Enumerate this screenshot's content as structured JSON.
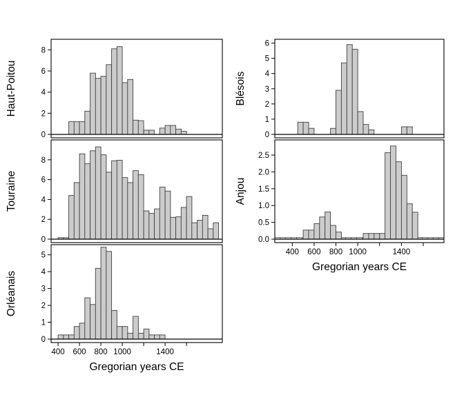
{
  "figure": {
    "xlabel": "Gregorian years CE",
    "x_ticks": [
      400,
      600,
      800,
      1000,
      1200,
      1400,
      1600
    ],
    "x_tick_labels": [
      "400",
      "600",
      "800",
      "1000",
      "",
      "1400",
      ""
    ],
    "colors": {
      "background": "#ffffff",
      "bar_fill": "#cccccc",
      "bar_stroke": "#3f3f3f",
      "axis": "#000000",
      "strip_fill": "#c8c8c8",
      "strip_stroke": "#555555"
    }
  },
  "chart_data": [
    {
      "type": "bar",
      "name": "haut-poitou",
      "ylabel": "Haut-Poitou",
      "xlabel": "Gregorian years CE",
      "column": "left",
      "row": 0,
      "bin_width": 50,
      "bin_start": 500,
      "values": [
        1.2,
        1.2,
        1.2,
        2.2,
        5.8,
        5.3,
        5.5,
        6.6,
        8.1,
        8.3,
        4.9,
        5.2,
        1.35,
        1.3,
        0.4,
        0.4,
        0,
        0.6,
        0.85,
        0.85,
        0.5,
        0.3
      ],
      "y_ticks": [
        0,
        2,
        4,
        6,
        8
      ],
      "y_tick_labels": [
        "0",
        "2",
        "4",
        "6",
        "8"
      ],
      "ylim": [
        0,
        9.0
      ],
      "x_domain": [
        335,
        1935
      ],
      "baseline_strip": null,
      "show_xaxis": false
    },
    {
      "type": "bar",
      "name": "touraine",
      "ylabel": "Touraine",
      "xlabel": "Gregorian years CE",
      "column": "left",
      "row": 1,
      "bin_width": 50,
      "bin_start": 400,
      "values": [
        0.15,
        0.15,
        4.4,
        5.7,
        8.6,
        7.6,
        8.9,
        9.3,
        8.5,
        6.75,
        7.9,
        7.95,
        6.2,
        5.7,
        6.9,
        6.5,
        2.85,
        2.6,
        3.05,
        5.25,
        4.85,
        2.2,
        2.25,
        3.2,
        4.3,
        1.65,
        1.9,
        2.4,
        1.05,
        1.65
      ],
      "y_ticks": [
        0,
        2,
        4,
        6,
        8
      ],
      "y_tick_labels": [
        "0",
        "2",
        "4",
        "6",
        "8"
      ],
      "ylim": [
        0,
        10.0
      ],
      "x_domain": [
        335,
        1935
      ],
      "baseline_strip": null,
      "show_xaxis": false
    },
    {
      "type": "bar",
      "name": "orleanais",
      "ylabel": "Orléanais",
      "xlabel": "Gregorian years CE",
      "column": "left",
      "row": 2,
      "bin_width": 50,
      "bin_start": 400,
      "values": [
        0.25,
        0.25,
        0.25,
        0.75,
        0.95,
        2.45,
        2.05,
        4.2,
        5.45,
        5.2,
        1.7,
        0.75,
        0.75,
        0.35,
        1.35,
        0.35,
        0.6,
        0.25,
        0.25,
        0.25
      ],
      "y_ticks": [
        0,
        1,
        2,
        3,
        4,
        5
      ],
      "y_tick_labels": [
        "0",
        "1",
        "2",
        "3",
        "4",
        "5"
      ],
      "ylim": [
        0,
        5.6
      ],
      "x_domain": [
        335,
        1935
      ],
      "baseline_strip": {
        "from": 400,
        "to": 1400
      },
      "show_xaxis": true
    },
    {
      "type": "bar",
      "name": "blesois",
      "ylabel": "Blésois",
      "xlabel": "Gregorian years CE",
      "column": "right",
      "row": 0,
      "bin_width": 50,
      "bin_start": 450,
      "values": [
        0.8,
        0.8,
        0.4,
        0,
        0,
        0,
        0.4,
        2.9,
        4.7,
        5.9,
        5.6,
        1.5,
        0.65,
        0.3,
        0,
        0,
        0,
        0,
        0,
        0.5,
        0.5
      ],
      "y_ticks": [
        0,
        1,
        2,
        3,
        4,
        5,
        6
      ],
      "y_tick_labels": [
        "0",
        "1",
        "2",
        "3",
        "4",
        "5",
        "6"
      ],
      "ylim": [
        0,
        6.25
      ],
      "x_domain": [
        240,
        1790
      ],
      "baseline_strip": null,
      "show_xaxis": false
    },
    {
      "type": "bar",
      "name": "anjou",
      "ylabel": "Anjou",
      "xlabel": "Gregorian years CE",
      "column": "right",
      "row": 1,
      "bin_width": 50,
      "bin_start": 500,
      "values": [
        0.27,
        0.27,
        0.46,
        0.66,
        0.81,
        0.41,
        0.21,
        0,
        0,
        0,
        0,
        0.17,
        0.17,
        0.17,
        0.17,
        2.57,
        2.77,
        2.3,
        1.9,
        1.05,
        0.8
      ],
      "y_ticks": [
        0,
        0.5,
        1.0,
        1.5,
        2.0,
        2.5
      ],
      "y_tick_labels": [
        "0.0",
        "0.5",
        "1.0",
        "1.5",
        "2.0",
        "2.5"
      ],
      "ylim": [
        0,
        2.95
      ],
      "x_domain": [
        240,
        1790
      ],
      "baseline_strip": {
        "from": 240,
        "to": 1790
      },
      "show_xaxis": true
    }
  ]
}
